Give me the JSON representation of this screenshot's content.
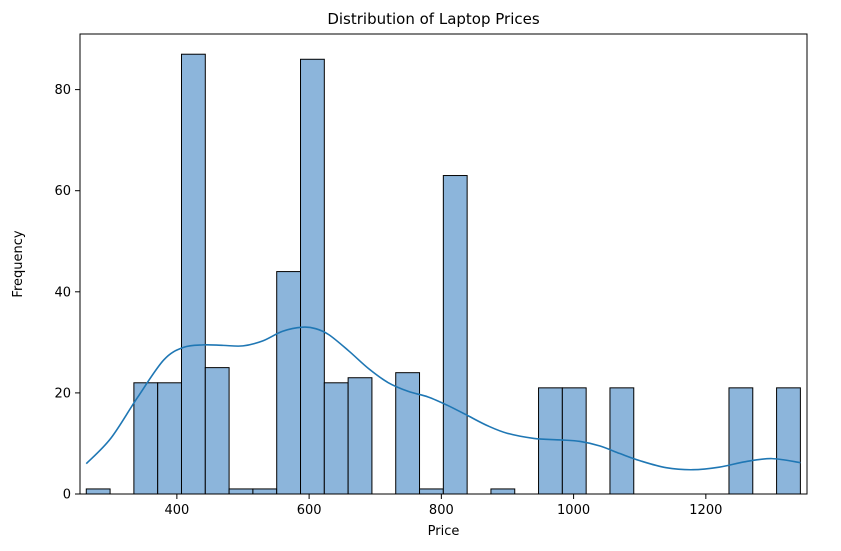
{
  "chart_data": {
    "type": "bar",
    "title": "Distribution of Laptop Prices",
    "xlabel": "Price",
    "ylabel": "Frequency",
    "xlim": [
      253.5,
      1353
    ],
    "ylim": [
      0,
      91
    ],
    "xticks": [
      400,
      600,
      800,
      1000,
      1200
    ],
    "yticks": [
      0,
      20,
      40,
      60,
      80
    ],
    "grid": false,
    "bin_width": 36,
    "bins": [
      {
        "start": 263,
        "end": 299,
        "count": 1
      },
      {
        "start": 335,
        "end": 371,
        "count": 22
      },
      {
        "start": 371,
        "end": 407,
        "count": 22
      },
      {
        "start": 407,
        "end": 443,
        "count": 87
      },
      {
        "start": 443,
        "end": 479,
        "count": 25
      },
      {
        "start": 479,
        "end": 515,
        "count": 1
      },
      {
        "start": 515,
        "end": 551,
        "count": 1
      },
      {
        "start": 551,
        "end": 587,
        "count": 44
      },
      {
        "start": 587,
        "end": 623,
        "count": 86
      },
      {
        "start": 623,
        "end": 659,
        "count": 22
      },
      {
        "start": 659,
        "end": 695,
        "count": 23
      },
      {
        "start": 731,
        "end": 767,
        "count": 24
      },
      {
        "start": 767,
        "end": 803,
        "count": 1
      },
      {
        "start": 803,
        "end": 839,
        "count": 63
      },
      {
        "start": 875,
        "end": 911,
        "count": 1
      },
      {
        "start": 947,
        "end": 983,
        "count": 21
      },
      {
        "start": 983,
        "end": 1019,
        "count": 21
      },
      {
        "start": 1055,
        "end": 1091,
        "count": 21
      },
      {
        "start": 1235,
        "end": 1271,
        "count": 21
      },
      {
        "start": 1307,
        "end": 1343,
        "count": 21
      }
    ],
    "kde": {
      "x": [
        263,
        300,
        340,
        380,
        410,
        440,
        470,
        500,
        530,
        560,
        590,
        610,
        630,
        660,
        690,
        720,
        750,
        780,
        810,
        840,
        870,
        900,
        940,
        980,
        1010,
        1040,
        1070,
        1100,
        1140,
        1180,
        1220,
        1260,
        1300,
        1343
      ],
      "y": [
        6,
        11,
        19,
        26.5,
        29,
        29.5,
        29.4,
        29.3,
        30.3,
        32.2,
        33,
        32.7,
        31.5,
        28.3,
        24.8,
        22,
        20.3,
        19.2,
        17.5,
        15.5,
        13.5,
        12,
        11,
        10.7,
        10.4,
        9.5,
        8,
        6.6,
        5.2,
        4.8,
        5.3,
        6.4,
        7,
        6.2
      ]
    },
    "colors": {
      "bar_fill": "#8cb5db",
      "bar_edge": "#000000",
      "kde_line": "#1f77b4"
    }
  }
}
